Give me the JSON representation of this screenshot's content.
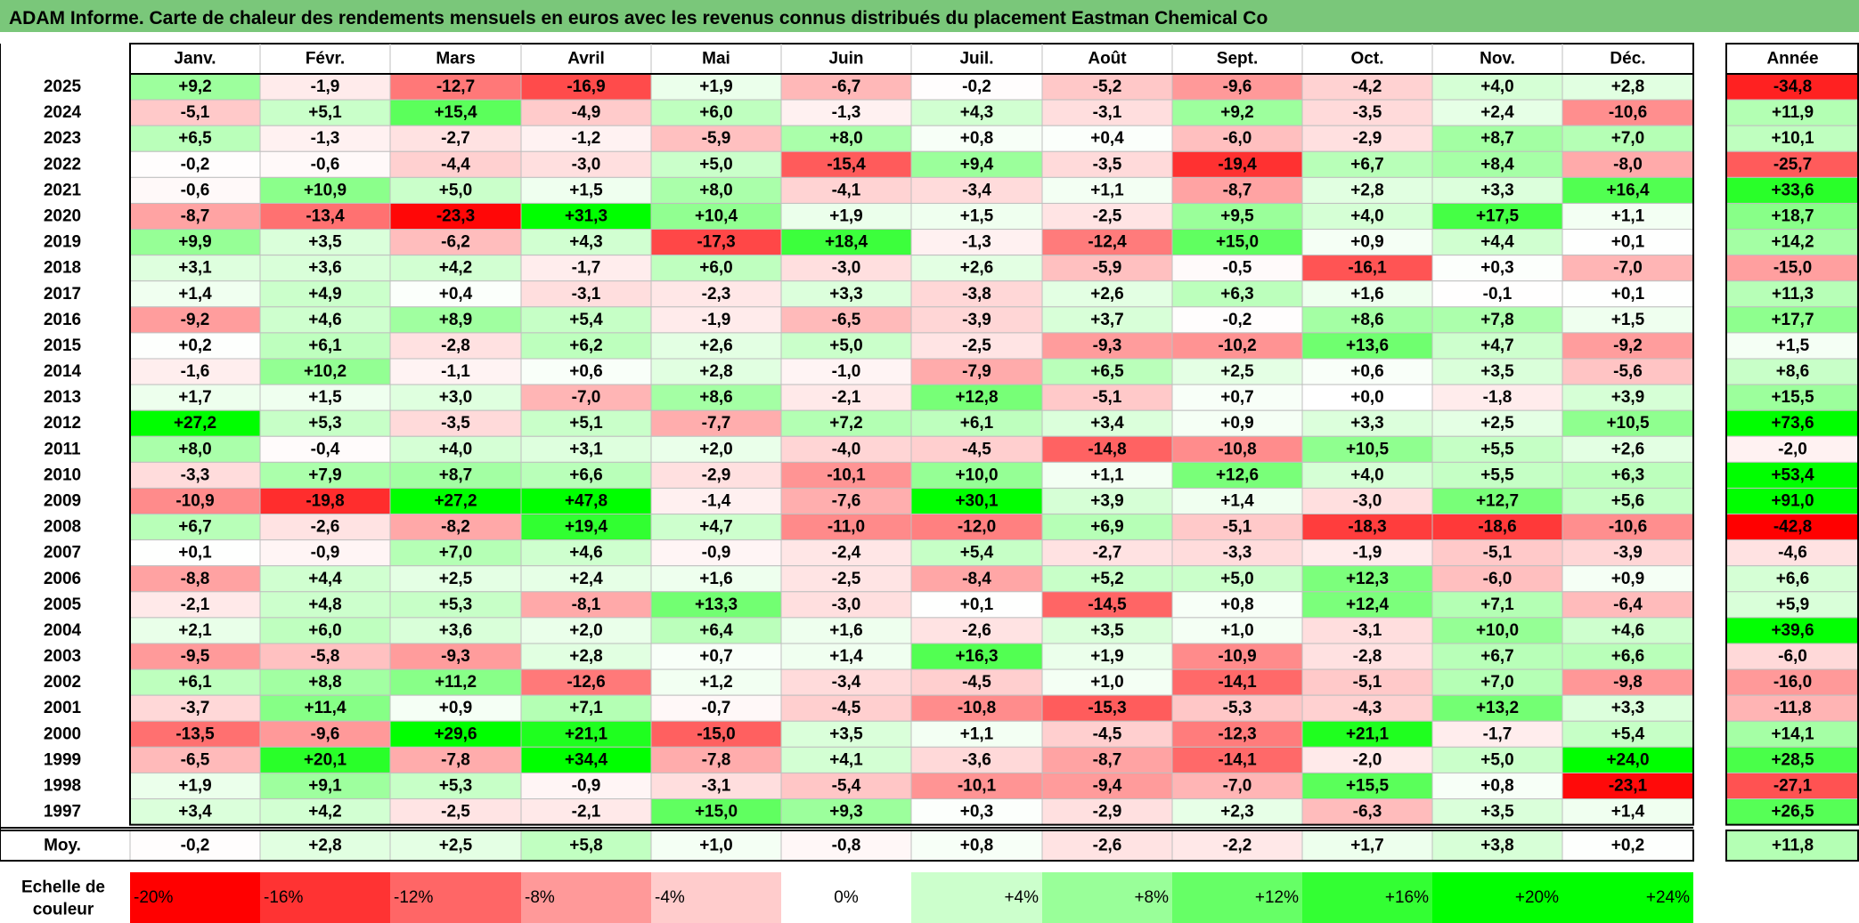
{
  "header": {
    "title": "ADAM Informe. Carte de chaleur des rendements mensuels en euros avec les revenus connus distribués du placement Eastman Chemical Co",
    "bar_color": "#7ac77a"
  },
  "chart_data": {
    "type": "heatmap",
    "title": "ADAM Informe. Carte de chaleur des rendements mensuels en euros avec les revenus connus distribués du placement Eastman Chemical Co",
    "columns": [
      "Janv.",
      "Févr.",
      "Mars",
      "Avril",
      "Mai",
      "Juin",
      "Juil.",
      "Août",
      "Sept.",
      "Oct.",
      "Nov.",
      "Déc."
    ],
    "year_column": "Année",
    "rows": [
      {
        "year": "2025",
        "values": [
          "+9,2",
          "-1,9",
          "-12,7",
          "-16,9",
          "+1,9",
          "-6,7",
          "-0,2",
          "-5,2",
          "-9,6",
          "-4,2",
          "+4,0",
          "+2,8"
        ],
        "annual": "-34,8"
      },
      {
        "year": "2024",
        "values": [
          "-5,1",
          "+5,1",
          "+15,4",
          "-4,9",
          "+6,0",
          "-1,3",
          "+4,3",
          "-3,1",
          "+9,2",
          "-3,5",
          "+2,4",
          "-10,6"
        ],
        "annual": "+11,9"
      },
      {
        "year": "2023",
        "values": [
          "+6,5",
          "-1,3",
          "-2,7",
          "-1,2",
          "-5,9",
          "+8,0",
          "+0,8",
          "+0,4",
          "-6,0",
          "-2,9",
          "+8,7",
          "+7,0"
        ],
        "annual": "+10,1"
      },
      {
        "year": "2022",
        "values": [
          "-0,2",
          "-0,6",
          "-4,4",
          "-3,0",
          "+5,0",
          "-15,4",
          "+9,4",
          "-3,5",
          "-19,4",
          "+6,7",
          "+8,4",
          "-8,0"
        ],
        "annual": "-25,7"
      },
      {
        "year": "2021",
        "values": [
          "-0,6",
          "+10,9",
          "+5,0",
          "+1,5",
          "+8,0",
          "-4,1",
          "-3,4",
          "+1,1",
          "-8,7",
          "+2,8",
          "+3,3",
          "+16,4"
        ],
        "annual": "+33,6"
      },
      {
        "year": "2020",
        "values": [
          "-8,7",
          "-13,4",
          "-23,3",
          "+31,3",
          "+10,4",
          "+1,9",
          "+1,5",
          "-2,5",
          "+9,5",
          "+4,0",
          "+17,5",
          "+1,1"
        ],
        "annual": "+18,7"
      },
      {
        "year": "2019",
        "values": [
          "+9,9",
          "+3,5",
          "-6,2",
          "+4,3",
          "-17,3",
          "+18,4",
          "-1,3",
          "-12,4",
          "+15,0",
          "+0,9",
          "+4,4",
          "+0,1"
        ],
        "annual": "+14,2"
      },
      {
        "year": "2018",
        "values": [
          "+3,1",
          "+3,6",
          "+4,2",
          "-1,7",
          "+6,0",
          "-3,0",
          "+2,6",
          "-5,9",
          "-0,5",
          "-16,1",
          "+0,3",
          "-7,0"
        ],
        "annual": "-15,0"
      },
      {
        "year": "2017",
        "values": [
          "+1,4",
          "+4,9",
          "+0,4",
          "-3,1",
          "-2,3",
          "+3,3",
          "-3,8",
          "+2,6",
          "+6,3",
          "+1,6",
          "-0,1",
          "+0,1"
        ],
        "annual": "+11,3"
      },
      {
        "year": "2016",
        "values": [
          "-9,2",
          "+4,6",
          "+8,9",
          "+5,4",
          "-1,9",
          "-6,5",
          "-3,9",
          "+3,7",
          "-0,2",
          "+8,6",
          "+7,8",
          "+1,5"
        ],
        "annual": "+17,7"
      },
      {
        "year": "2015",
        "values": [
          "+0,2",
          "+6,1",
          "-2,8",
          "+6,2",
          "+2,6",
          "+5,0",
          "-2,5",
          "-9,3",
          "-10,2",
          "+13,6",
          "+4,7",
          "-9,2"
        ],
        "annual": "+1,5"
      },
      {
        "year": "2014",
        "values": [
          "-1,6",
          "+10,2",
          "-1,1",
          "+0,6",
          "+2,8",
          "-1,0",
          "-7,9",
          "+6,5",
          "+2,5",
          "+0,6",
          "+3,5",
          "-5,6"
        ],
        "annual": "+8,6"
      },
      {
        "year": "2013",
        "values": [
          "+1,7",
          "+1,5",
          "+3,0",
          "-7,0",
          "+8,6",
          "-2,1",
          "+12,8",
          "-5,1",
          "+0,7",
          "+0,0",
          "-1,8",
          "+3,9"
        ],
        "annual": "+15,5"
      },
      {
        "year": "2012",
        "values": [
          "+27,2",
          "+5,3",
          "-3,5",
          "+5,1",
          "-7,7",
          "+7,2",
          "+6,1",
          "+3,4",
          "+0,9",
          "+3,3",
          "+2,5",
          "+10,5"
        ],
        "annual": "+73,6"
      },
      {
        "year": "2011",
        "values": [
          "+8,0",
          "-0,4",
          "+4,0",
          "+3,1",
          "+2,0",
          "-4,0",
          "-4,5",
          "-14,8",
          "-10,8",
          "+10,5",
          "+5,5",
          "+2,6"
        ],
        "annual": "-2,0"
      },
      {
        "year": "2010",
        "values": [
          "-3,3",
          "+7,9",
          "+8,7",
          "+6,6",
          "-2,9",
          "-10,1",
          "+10,0",
          "+1,1",
          "+12,6",
          "+4,0",
          "+5,5",
          "+6,3"
        ],
        "annual": "+53,4"
      },
      {
        "year": "2009",
        "values": [
          "-10,9",
          "-19,8",
          "+27,2",
          "+47,8",
          "-1,4",
          "-7,6",
          "+30,1",
          "+3,9",
          "+1,4",
          "-3,0",
          "+12,7",
          "+5,6"
        ],
        "annual": "+91,0"
      },
      {
        "year": "2008",
        "values": [
          "+6,7",
          "-2,6",
          "-8,2",
          "+19,4",
          "+4,7",
          "-11,0",
          "-12,0",
          "+6,9",
          "-5,1",
          "-18,3",
          "-18,6",
          "-10,6"
        ],
        "annual": "-42,8"
      },
      {
        "year": "2007",
        "values": [
          "+0,1",
          "-0,9",
          "+7,0",
          "+4,6",
          "-0,9",
          "-2,4",
          "+5,4",
          "-2,7",
          "-3,3",
          "-1,9",
          "-5,1",
          "-3,9"
        ],
        "annual": "-4,6"
      },
      {
        "year": "2006",
        "values": [
          "-8,8",
          "+4,4",
          "+2,5",
          "+2,4",
          "+1,6",
          "-2,5",
          "-8,4",
          "+5,2",
          "+5,0",
          "+12,3",
          "-6,0",
          "+0,9"
        ],
        "annual": "+6,6"
      },
      {
        "year": "2005",
        "values": [
          "-2,1",
          "+4,8",
          "+5,3",
          "-8,1",
          "+13,3",
          "-3,0",
          "+0,1",
          "-14,5",
          "+0,8",
          "+12,4",
          "+7,1",
          "-6,4"
        ],
        "annual": "+5,9"
      },
      {
        "year": "2004",
        "values": [
          "+2,1",
          "+6,0",
          "+3,6",
          "+2,0",
          "+6,4",
          "+1,6",
          "-2,6",
          "+3,5",
          "+1,0",
          "-3,1",
          "+10,0",
          "+4,6"
        ],
        "annual": "+39,6"
      },
      {
        "year": "2003",
        "values": [
          "-9,5",
          "-5,8",
          "-9,3",
          "+2,8",
          "+0,7",
          "+1,4",
          "+16,3",
          "+1,9",
          "-10,9",
          "-2,8",
          "+6,7",
          "+6,6"
        ],
        "annual": "-6,0"
      },
      {
        "year": "2002",
        "values": [
          "+6,1",
          "+8,8",
          "+11,2",
          "-12,6",
          "+1,2",
          "-3,4",
          "-4,5",
          "+1,0",
          "-14,1",
          "-5,1",
          "+7,0",
          "-9,8"
        ],
        "annual": "-16,0"
      },
      {
        "year": "2001",
        "values": [
          "-3,7",
          "+11,4",
          "+0,9",
          "+7,1",
          "-0,7",
          "-4,5",
          "-10,8",
          "-15,3",
          "-5,3",
          "-4,3",
          "+13,2",
          "+3,3"
        ],
        "annual": "-11,8"
      },
      {
        "year": "2000",
        "values": [
          "-13,5",
          "-9,6",
          "+29,6",
          "+21,1",
          "-15,0",
          "+3,5",
          "+1,1",
          "-4,5",
          "-12,3",
          "+21,1",
          "-1,7",
          "+5,4"
        ],
        "annual": "+14,1"
      },
      {
        "year": "1999",
        "values": [
          "-6,5",
          "+20,1",
          "-7,8",
          "+34,4",
          "-7,8",
          "+4,1",
          "-3,6",
          "-8,7",
          "-14,1",
          "-2,0",
          "+5,0",
          "+24,0"
        ],
        "annual": "+28,5"
      },
      {
        "year": "1998",
        "values": [
          "+1,9",
          "+9,1",
          "+5,3",
          "-0,9",
          "-3,1",
          "-5,4",
          "-10,1",
          "-9,4",
          "-7,0",
          "+15,5",
          "+0,8",
          "-23,1"
        ],
        "annual": "-27,1"
      },
      {
        "year": "1997",
        "values": [
          "+3,4",
          "+4,2",
          "-2,5",
          "-2,1",
          "+15,0",
          "+9,3",
          "+0,3",
          "-2,9",
          "+2,3",
          "-6,3",
          "+3,5",
          "+1,4"
        ],
        "annual": "+26,5"
      }
    ],
    "average": {
      "label": "Moy.",
      "values": [
        "-0,2",
        "+2,8",
        "+2,5",
        "+5,8",
        "+1,0",
        "-0,8",
        "+0,8",
        "-2,6",
        "-2,2",
        "+1,7",
        "+3,8",
        "+0,2"
      ],
      "annual": "+11,8"
    },
    "scale": {
      "label": "Echelle de couleur",
      "steps": [
        "-20%",
        "-16%",
        "-12%",
        "-8%",
        "-4%",
        "0%",
        "+4%",
        "+8%",
        "+12%",
        "+16%",
        "+20%",
        "+24%"
      ]
    },
    "colors": {
      "negative": "#ff0000",
      "neutral": "#ffffff",
      "positive": "#00ff00",
      "grid": "#bfbfbf",
      "border": "#000000"
    }
  }
}
